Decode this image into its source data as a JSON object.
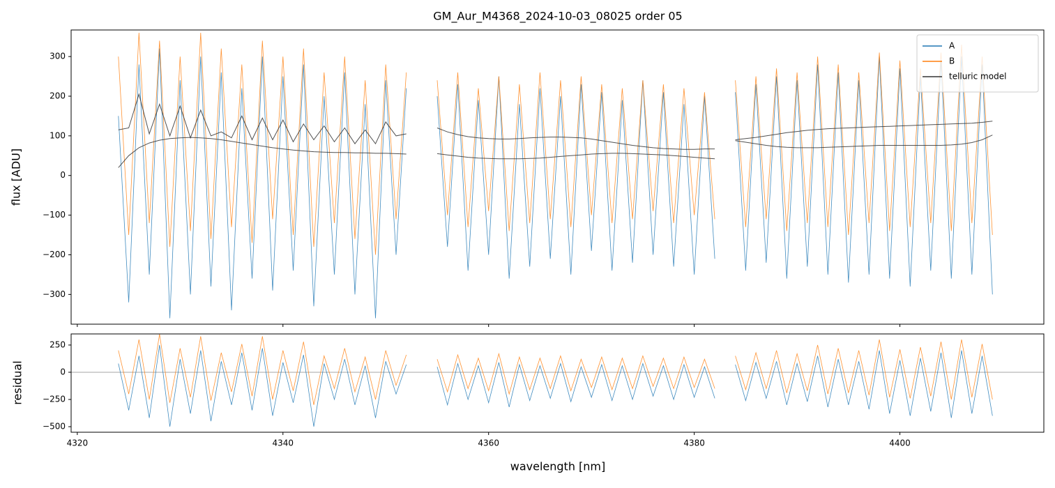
{
  "chart_data": [
    {
      "type": "line",
      "title": "GM_Aur_M4368_2024-10-03_08025  order 05",
      "ylabel": "flux [ADU]",
      "x": [
        4324,
        4325,
        4326,
        4327,
        4328,
        4329,
        4330,
        4331,
        4332,
        4333,
        4334,
        4335,
        4336,
        4337,
        4338,
        4339,
        4340,
        4341,
        4342,
        4343,
        4344,
        4345,
        4346,
        4347,
        4348,
        4349,
        4350,
        4351,
        4352,
        4353,
        4354,
        4355,
        4356,
        4357,
        4358,
        4359,
        4360,
        4361,
        4362,
        4363,
        4364,
        4365,
        4366,
        4367,
        4368,
        4369,
        4370,
        4371,
        4372,
        4373,
        4374,
        4375,
        4376,
        4377,
        4378,
        4379,
        4380,
        4381,
        4382,
        4383,
        4384,
        4385,
        4386,
        4387,
        4388,
        4389,
        4390,
        4391,
        4392,
        4393,
        4394,
        4395,
        4396,
        4397,
        4398,
        4399,
        4400,
        4401,
        4402,
        4403,
        4404,
        4405,
        4406,
        4407,
        4408,
        4409
      ],
      "xlim": [
        4319.4,
        4414.0
      ],
      "ylim": [
        -375,
        367
      ],
      "yticks": [
        {
          "value": -300,
          "label": "−300"
        },
        {
          "value": -200,
          "label": "−200"
        },
        {
          "value": -100,
          "label": "−100"
        },
        0,
        100,
        200,
        300
      ],
      "legend": "upper right",
      "series": [
        {
          "name": "A",
          "color": "#1f77b4",
          "values": [
            150,
            -320,
            280,
            -250,
            320,
            -360,
            240,
            -300,
            300,
            -280,
            260,
            -340,
            220,
            -260,
            300,
            -290,
            250,
            -240,
            280,
            -330,
            200,
            -250,
            260,
            -300,
            180,
            -360,
            240,
            -200,
            220,
            null,
            null,
            200,
            -180,
            230,
            -240,
            190,
            -200,
            250,
            -260,
            180,
            -230,
            220,
            -210,
            200,
            -250,
            230,
            -190,
            210,
            -240,
            190,
            -220,
            240,
            -200,
            210,
            -230,
            180,
            -250,
            200,
            -210,
            null,
            210,
            -240,
            230,
            -220,
            250,
            -260,
            240,
            -230,
            280,
            -250,
            260,
            -270,
            240,
            -250,
            300,
            -260,
            270,
            -280,
            250,
            -240,
            290,
            -260,
            300,
            -250,
            280,
            -300
          ]
        },
        {
          "name": "B",
          "color": "#ff7f0e",
          "values": [
            300,
            -150,
            360,
            -120,
            340,
            -180,
            300,
            -140,
            360,
            -160,
            320,
            -130,
            280,
            -170,
            340,
            -110,
            300,
            -150,
            320,
            -180,
            260,
            -120,
            300,
            -160,
            240,
            -200,
            280,
            -110,
            260,
            null,
            null,
            240,
            -100,
            260,
            -130,
            220,
            -90,
            250,
            -140,
            230,
            -120,
            260,
            -110,
            240,
            -130,
            250,
            -100,
            230,
            -120,
            220,
            -110,
            240,
            -90,
            230,
            -120,
            220,
            -100,
            210,
            -110,
            null,
            240,
            -130,
            250,
            -110,
            270,
            -140,
            260,
            -120,
            300,
            -130,
            280,
            -150,
            260,
            -120,
            310,
            -140,
            290,
            -130,
            270,
            -120,
            310,
            -140,
            330,
            -120,
            300,
            -150
          ]
        },
        {
          "name": "telluric model",
          "color": "#333333",
          "values": [
            115,
            120,
            205,
            105,
            180,
            100,
            175,
            95,
            165,
            100,
            110,
            95,
            150,
            90,
            145,
            90,
            140,
            85,
            130,
            90,
            125,
            85,
            120,
            80,
            115,
            80,
            135,
            100,
            105,
            null,
            null,
            120,
            110,
            103,
            98,
            95,
            93,
            92,
            92,
            93,
            95,
            96,
            97,
            97,
            96,
            95,
            92,
            88,
            84,
            80,
            76,
            73,
            70,
            68,
            67,
            66,
            66,
            67,
            67,
            null,
            90,
            93,
            96,
            100,
            104,
            108,
            111,
            114,
            116,
            118,
            119,
            120,
            121,
            122,
            123,
            124,
            125,
            126,
            127,
            128,
            129,
            130,
            131,
            132,
            134,
            137
          ]
        },
        {
          "name": "telluric model",
          "color": "#333333",
          "values": [
            20,
            50,
            70,
            82,
            89,
            93,
            95,
            96,
            95,
            93,
            90,
            86,
            82,
            78,
            74,
            70,
            67,
            64,
            62,
            60,
            59,
            58,
            58,
            57,
            57,
            56,
            56,
            55,
            54,
            null,
            null,
            55,
            52,
            49,
            46,
            44,
            43,
            42,
            42,
            42,
            43,
            44,
            46,
            48,
            50,
            52,
            54,
            55,
            56,
            56,
            55,
            54,
            53,
            52,
            50,
            48,
            46,
            44,
            42,
            null,
            88,
            84,
            80,
            76,
            73,
            71,
            70,
            70,
            70,
            71,
            72,
            73,
            74,
            75,
            76,
            76,
            76,
            76,
            76,
            76,
            76,
            77,
            79,
            83,
            90,
            102
          ]
        }
      ]
    },
    {
      "type": "line",
      "ylabel": "residual",
      "xlabel": "wavelength [nm]",
      "x": [
        4324,
        4325,
        4326,
        4327,
        4328,
        4329,
        4330,
        4331,
        4332,
        4333,
        4334,
        4335,
        4336,
        4337,
        4338,
        4339,
        4340,
        4341,
        4342,
        4343,
        4344,
        4345,
        4346,
        4347,
        4348,
        4349,
        4350,
        4351,
        4352,
        4353,
        4354,
        4355,
        4356,
        4357,
        4358,
        4359,
        4360,
        4361,
        4362,
        4363,
        4364,
        4365,
        4366,
        4367,
        4368,
        4369,
        4370,
        4371,
        4372,
        4373,
        4374,
        4375,
        4376,
        4377,
        4378,
        4379,
        4380,
        4381,
        4382,
        4383,
        4384,
        4385,
        4386,
        4387,
        4388,
        4389,
        4390,
        4391,
        4392,
        4393,
        4394,
        4395,
        4396,
        4397,
        4398,
        4399,
        4400,
        4401,
        4402,
        4403,
        4404,
        4405,
        4406,
        4407,
        4408,
        4409
      ],
      "xlim": [
        4319.4,
        4414.0
      ],
      "xticks": [
        4320,
        4340,
        4360,
        4380,
        4400
      ],
      "ylim": [
        -551,
        352
      ],
      "yticks": [
        {
          "value": -500,
          "label": "−500"
        },
        {
          "value": -250,
          "label": "−250"
        },
        0,
        250
      ],
      "hline": 0,
      "series": [
        {
          "name": "A",
          "color": "#1f77b4",
          "values": [
            80,
            -350,
            150,
            -420,
            250,
            -500,
            120,
            -380,
            200,
            -450,
            100,
            -300,
            180,
            -350,
            220,
            -400,
            90,
            -280,
            160,
            -500,
            80,
            -250,
            120,
            -300,
            60,
            -420,
            100,
            -200,
            70,
            null,
            null,
            50,
            -300,
            80,
            -250,
            60,
            -280,
            90,
            -320,
            70,
            -260,
            60,
            -240,
            80,
            -270,
            50,
            -230,
            70,
            -260,
            60,
            -250,
            80,
            -220,
            60,
            -250,
            70,
            -230,
            50,
            -240,
            null,
            70,
            -260,
            90,
            -240,
            100,
            -300,
            80,
            -270,
            150,
            -320,
            120,
            -300,
            100,
            -340,
            200,
            -380,
            110,
            -400,
            130,
            -360,
            180,
            -420,
            200,
            -380,
            150,
            -400
          ]
        },
        {
          "name": "B",
          "color": "#ff7f0e",
          "values": [
            200,
            -200,
            300,
            -250,
            350,
            -280,
            220,
            -230,
            330,
            -260,
            180,
            -180,
            260,
            -220,
            330,
            -250,
            200,
            -170,
            280,
            -300,
            150,
            -150,
            220,
            -180,
            140,
            -250,
            200,
            -120,
            160,
            null,
            null,
            120,
            -180,
            160,
            -150,
            130,
            -170,
            170,
            -200,
            140,
            -160,
            130,
            -150,
            150,
            -170,
            120,
            -140,
            140,
            -160,
            130,
            -150,
            150,
            -130,
            130,
            -150,
            140,
            -140,
            120,
            -150,
            null,
            150,
            -160,
            180,
            -150,
            200,
            -190,
            170,
            -170,
            250,
            -200,
            220,
            -190,
            200,
            -210,
            300,
            -230,
            210,
            -240,
            230,
            -220,
            280,
            -250,
            300,
            -230,
            260,
            -250
          ]
        }
      ]
    }
  ]
}
